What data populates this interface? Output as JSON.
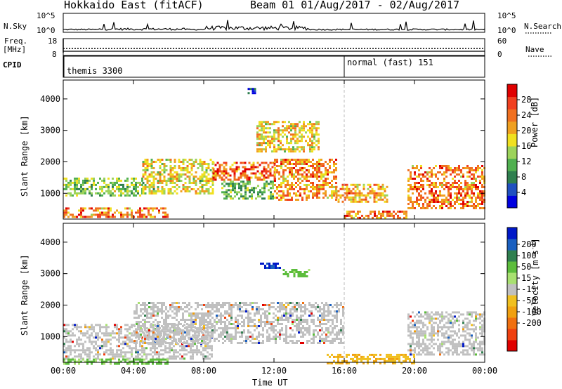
{
  "header": {
    "radar_title": "Hokkaido East (fitACF)",
    "beam_title": "Beam 01 01/Aug/2017 - 02/Aug/2017"
  },
  "nsky_panel": {
    "left_label": "N.Sky",
    "right_label": "N.Search",
    "left_ticks": [
      "10^5",
      "10^0"
    ],
    "right_ticks": [
      "10^5",
      "10^0"
    ]
  },
  "freq_panel": {
    "left_label_line1": "Freq.",
    "left_label_line2": "[MHz]",
    "right_label": "Nave",
    "left_ticks": [
      "18",
      "8"
    ],
    "right_ticks": [
      "60",
      "0"
    ]
  },
  "cpid_panel": {
    "label": "CPID",
    "segments": [
      {
        "text": "themis 3300",
        "start_hour": 0
      },
      {
        "text": "normal (fast) 151",
        "start_hour": 16
      }
    ]
  },
  "chart_data": [
    {
      "type": "heatmap",
      "panel": "power",
      "title": "",
      "xlabel": "",
      "ylabel": "Slant Range [km]",
      "x_ticks": [
        "00:00",
        "04:00",
        "08:00",
        "12:00",
        "16:00",
        "20:00",
        "00:00"
      ],
      "y_ticks": [
        "1000",
        "2000",
        "3000",
        "4000"
      ],
      "xlim": [
        0,
        24
      ],
      "ylim": [
        180,
        4600
      ],
      "colorbar": {
        "label": "Power [dB]",
        "ticks": [
          "4",
          "8",
          "12",
          "16",
          "20",
          "24",
          "28"
        ],
        "colors": [
          "#0000e0",
          "#2050c0",
          "#2f7f4f",
          "#50b050",
          "#9cd35a",
          "#f0e020",
          "#f0a020",
          "#f07020",
          "#f04020",
          "#e00000"
        ]
      },
      "echo_regions": [
        {
          "h0": 0.0,
          "h1": 4.5,
          "r0": 900,
          "r1": 1500,
          "level": 0.45
        },
        {
          "h0": 0.0,
          "h1": 6.0,
          "r0": 250,
          "r1": 550,
          "level": 0.85
        },
        {
          "h0": 4.5,
          "h1": 8.5,
          "r0": 1000,
          "r1": 2100,
          "level": 0.6
        },
        {
          "h0": 8.5,
          "h1": 12.0,
          "r0": 1400,
          "r1": 2000,
          "level": 0.9
        },
        {
          "h0": 9.0,
          "h1": 12.0,
          "r0": 800,
          "r1": 1400,
          "level": 0.4
        },
        {
          "h0": 12.0,
          "h1": 15.5,
          "r0": 800,
          "r1": 2100,
          "level": 0.8
        },
        {
          "h0": 11.0,
          "h1": 14.5,
          "r0": 2300,
          "r1": 3300,
          "level": 0.65
        },
        {
          "h0": 15.5,
          "h1": 18.5,
          "r0": 700,
          "r1": 1300,
          "level": 0.75
        },
        {
          "h0": 16.0,
          "h1": 19.5,
          "r0": 200,
          "r1": 450,
          "level": 0.85
        },
        {
          "h0": 19.6,
          "h1": 24.0,
          "r0": 500,
          "r1": 1900,
          "level": 0.85
        },
        {
          "h0": 10.5,
          "h1": 11.0,
          "r0": 4200,
          "r1": 4350,
          "level": 0.1
        }
      ]
    },
    {
      "type": "heatmap",
      "panel": "velocity",
      "title": "",
      "xlabel": "Time UT",
      "ylabel": "Slant Range [km]",
      "x_ticks": [
        "00:00",
        "04:00",
        "08:00",
        "12:00",
        "16:00",
        "20:00",
        "00:00"
      ],
      "y_ticks": [
        "1000",
        "2000",
        "3000",
        "4000"
      ],
      "xlim": [
        0,
        24
      ],
      "ylim": [
        180,
        4600
      ],
      "colorbar": {
        "label": "Velocity [m s^-1]",
        "ticks": [
          "200",
          "100",
          "50",
          "15",
          "-15",
          "-50",
          "-100",
          "-200"
        ],
        "colors": [
          "#0018c8",
          "#1a60c0",
          "#2f7f4f",
          "#5cbd3c",
          "#a8e070",
          "#c0c0c0",
          "#f0c020",
          "#f0a010",
          "#f07010",
          "#f04010",
          "#e00000"
        ]
      },
      "echo_regions": [
        {
          "h0": 0.0,
          "h1": 8.5,
          "r0": 300,
          "r1": 1400,
          "kind": "ground"
        },
        {
          "h0": 4.0,
          "h1": 16.0,
          "r0": 800,
          "r1": 2100,
          "kind": "ground"
        },
        {
          "h0": 19.6,
          "h1": 24.0,
          "r0": 400,
          "r1": 1800,
          "kind": "ground"
        },
        {
          "h0": 0.0,
          "h1": 6.0,
          "r0": 150,
          "r1": 300,
          "kind": "green"
        },
        {
          "h0": 15.0,
          "h1": 20.0,
          "r0": 180,
          "r1": 450,
          "kind": "orange"
        },
        {
          "h0": 11.2,
          "h1": 12.3,
          "r0": 3150,
          "r1": 3350,
          "kind": "blue"
        },
        {
          "h0": 12.5,
          "h1": 14.0,
          "r0": 2900,
          "r1": 3150,
          "kind": "green"
        }
      ]
    }
  ]
}
